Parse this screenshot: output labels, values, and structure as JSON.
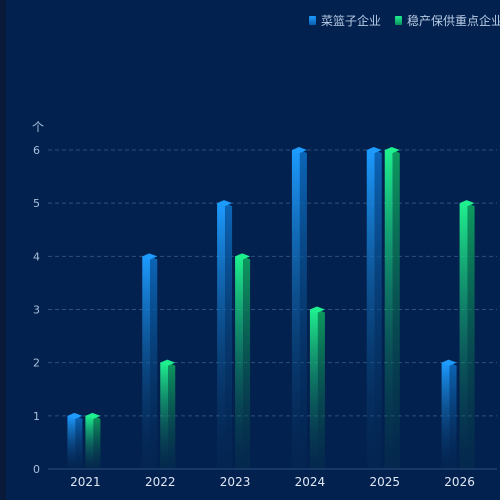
{
  "colors": {
    "background": "#03214e",
    "grid": "#2b4f7e",
    "axis_text": "#a9bfdc",
    "series1_top": "#1d9bff",
    "series1_bottom": "#06335f",
    "series2_top": "#1ff08f",
    "series2_bottom": "#0a4a4a"
  },
  "chart_data": {
    "type": "bar",
    "style": "3d-prism",
    "categories": [
      "2021",
      "2022",
      "2023",
      "2024",
      "2025",
      "2026"
    ],
    "series": [
      {
        "name": "菜篮子企业",
        "values": [
          1,
          4,
          5,
          6,
          6,
          2
        ]
      },
      {
        "name": "稳产保供重点企业",
        "values": [
          1,
          2,
          4,
          3,
          6,
          5
        ]
      }
    ],
    "ylabel": "个",
    "ylim": [
      0,
      6
    ],
    "yticks": [
      0,
      1,
      2,
      3,
      4,
      5,
      6
    ],
    "grid": true,
    "grid_style": "dashed",
    "legend_position": "top-right"
  }
}
